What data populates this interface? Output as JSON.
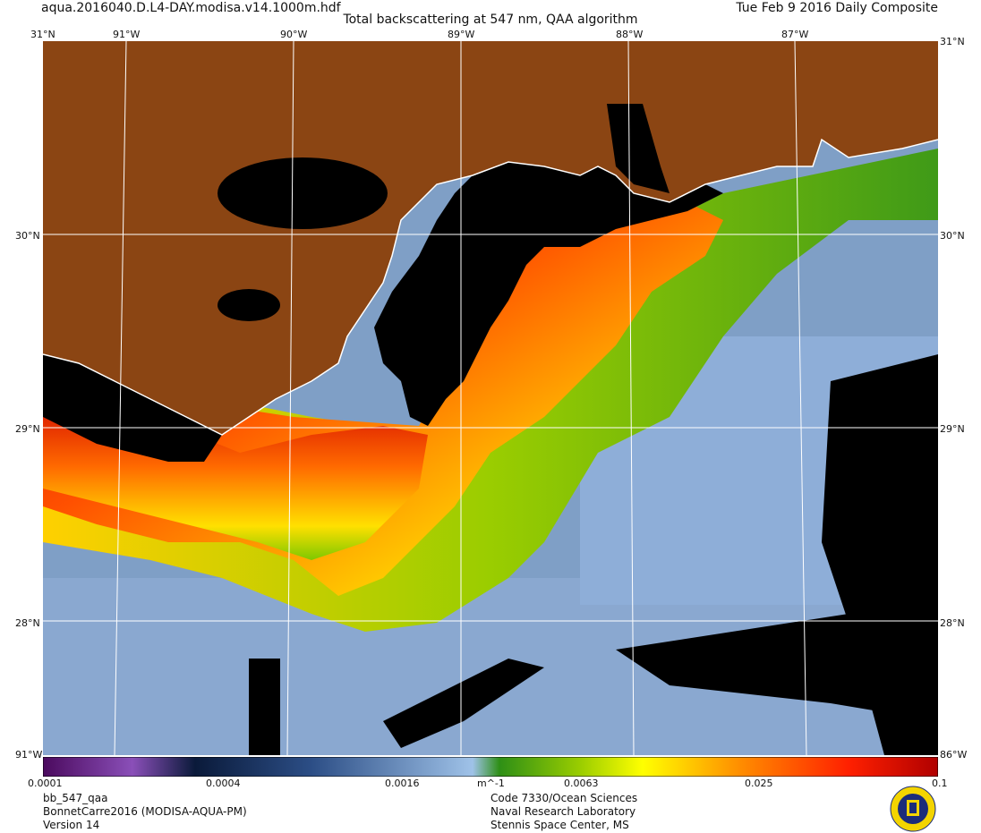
{
  "header": {
    "file_name": "aqua.2016040.D.L4-DAY.modisa.v14.1000m.hdf",
    "title": "Total backscattering at 547 nm, QAA algorithm",
    "date": "Tue Feb  9 2016 Daily Composite"
  },
  "map": {
    "lon_labels": [
      "91°W",
      "90°W",
      "89°W",
      "88°W",
      "87°W"
    ],
    "lat_labels": [
      "31°N",
      "30°N",
      "29°N",
      "28°N"
    ],
    "edge_labels": {
      "top_left": "31°N",
      "top_right": "31°N",
      "bottom_left": "91°W",
      "bottom_right": "86°W"
    },
    "land_color": "#8B4513",
    "nodata_color": "#000000",
    "coastline_color": "#ffffff",
    "gridline_color": "#ffffff"
  },
  "colorbar": {
    "labels": [
      "0.0001",
      "0.0004",
      "0.0016",
      "m^-1",
      "0.0063",
      "0.025",
      "0.1"
    ],
    "scale": "log",
    "range": [
      0.0001,
      0.1
    ],
    "colors": [
      "#4b0a5e",
      "#8a4fb8",
      "#0a1a3a",
      "#2c4e86",
      "#9fc2e8",
      "#2e8f16",
      "#9acd00",
      "#ffff00",
      "#ff8c00",
      "#ff2000",
      "#b00000"
    ]
  },
  "footer": {
    "product": "bb_547_qaa",
    "dataset": "BonnetCarre2016 (MODISA-AQUA-PM)",
    "version": "Version 14",
    "org_line1": "Code 7330/Ocean Sciences",
    "org_line2": "Naval Research Laboratory",
    "org_line3": "Stennis Space Center, MS"
  },
  "seal": {
    "icon": "nrl-seal-icon"
  }
}
